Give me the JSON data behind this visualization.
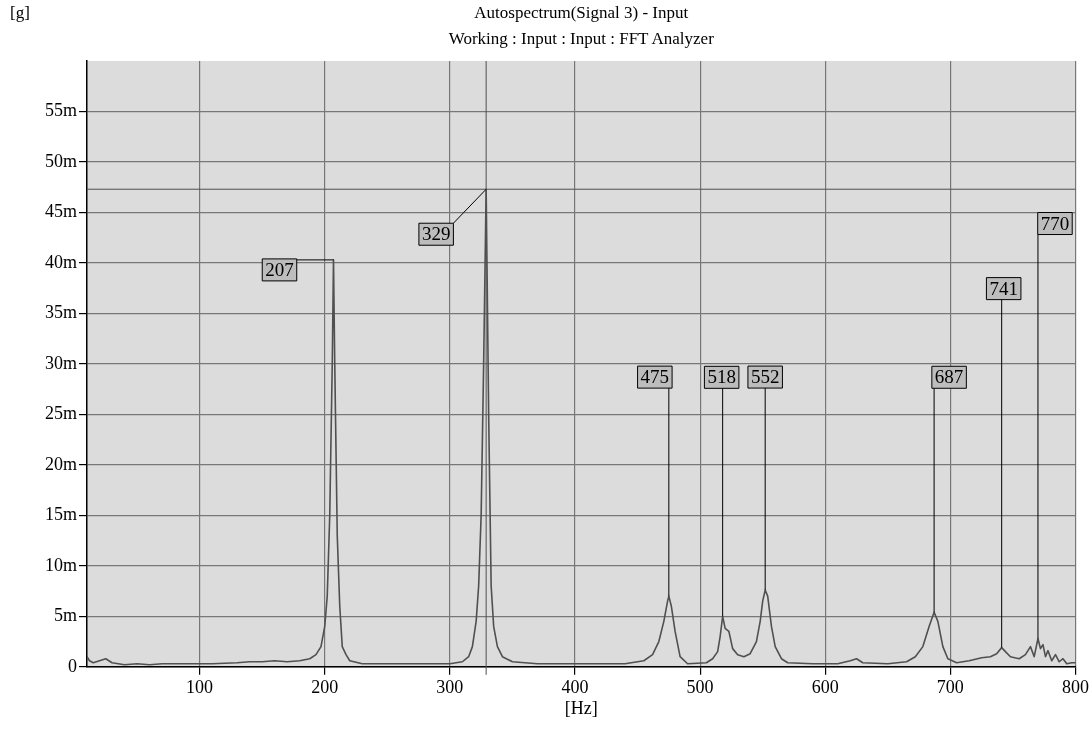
{
  "chart_data": {
    "type": "line",
    "title": "Autospectrum(Signal 3) - Input",
    "subtitle": "Working : Input : Input : FFT Analyzer",
    "xlabel": "[Hz]",
    "ylabel": "[g]",
    "xlim": [
      10,
      800
    ],
    "xticks": [
      100,
      200,
      300,
      400,
      500,
      600,
      700,
      800
    ],
    "ylim": [
      0,
      60
    ],
    "yticks": [
      0,
      {
        "value": 5,
        "label": "5m"
      },
      {
        "value": 10,
        "label": "10m"
      },
      {
        "value": 15,
        "label": "15m"
      },
      {
        "value": 20,
        "label": "20m"
      },
      {
        "value": 25,
        "label": "25m"
      },
      {
        "value": 30,
        "label": "30m"
      },
      {
        "value": 35,
        "label": "35m"
      },
      {
        "value": 40,
        "label": "40m"
      },
      {
        "value": 45,
        "label": "45m"
      },
      {
        "value": 50,
        "label": "50m"
      },
      {
        "value": 55,
        "label": "55m"
      }
    ],
    "grid": true,
    "legend": false,
    "marker": "none",
    "line_style": "solid",
    "series": [
      {
        "color": "#505050",
        "x": [
          10,
          12,
          15,
          25,
          30,
          40,
          50,
          60,
          70,
          90,
          110,
          130,
          140,
          150,
          160,
          170,
          180,
          188,
          193,
          197,
          200,
          202,
          204,
          206,
          207,
          208,
          210,
          212,
          214,
          217,
          220,
          230,
          260,
          280,
          300,
          310,
          315,
          318,
          321,
          323,
          325,
          327,
          329,
          331,
          333,
          335,
          338,
          342,
          350,
          370,
          400,
          440,
          455,
          462,
          467,
          471,
          474,
          475,
          477,
          480,
          484,
          490,
          505,
          510,
          514,
          516,
          518,
          520,
          523,
          526,
          530,
          535,
          540,
          545,
          548,
          550,
          552,
          554,
          557,
          560,
          565,
          570,
          590,
          600,
          610,
          620,
          625,
          630,
          650,
          665,
          672,
          678,
          683,
          687,
          690,
          694,
          698,
          705,
          715,
          725,
          732,
          737,
          741,
          744,
          748,
          755,
          760,
          764,
          767,
          770,
          772,
          774,
          776,
          778,
          781,
          784,
          787,
          790,
          793,
          797,
          800
        ],
        "values": [
          1,
          0.6,
          0.4,
          0.8,
          0.4,
          0.2,
          0.3,
          0.2,
          0.3,
          0.3,
          0.3,
          0.4,
          0.5,
          0.5,
          0.6,
          0.5,
          0.6,
          0.8,
          1.2,
          2,
          4,
          7,
          15,
          30,
          40.3,
          30,
          13,
          6,
          2,
          1.2,
          0.6,
          0.3,
          0.3,
          0.3,
          0.3,
          0.5,
          1,
          2,
          4.5,
          8,
          15,
          30,
          47.3,
          25,
          8,
          4,
          2,
          1,
          0.5,
          0.3,
          0.3,
          0.3,
          0.6,
          1.2,
          2.5,
          4.5,
          6.5,
          7,
          6,
          3.5,
          1,
          0.3,
          0.4,
          0.8,
          1.5,
          3,
          5,
          3.8,
          3.5,
          1.8,
          1.2,
          1,
          1.3,
          2.5,
          4.5,
          6.5,
          7.6,
          7,
          4,
          2,
          0.8,
          0.4,
          0.3,
          0.3,
          0.3,
          0.6,
          0.8,
          0.4,
          0.3,
          0.5,
          1,
          2,
          4,
          5.4,
          4.5,
          2,
          0.8,
          0.4,
          0.6,
          0.9,
          1,
          1.3,
          1.9,
          1.5,
          1,
          0.8,
          1.2,
          2,
          1,
          2.8,
          1.8,
          2.2,
          1,
          1.6,
          0.6,
          1.2,
          0.5,
          0.8,
          0.3,
          0.4,
          0.4
        ]
      }
    ],
    "ref_lines": [
      {
        "axis": "y",
        "value": 47.3,
        "color": "#505050"
      },
      {
        "axis": "x",
        "value": 329,
        "color": "#505050"
      }
    ],
    "annotations": [
      {
        "text": "207",
        "x": 207,
        "y": 40.3
      },
      {
        "text": "329",
        "x": 329,
        "y": 47.3
      },
      {
        "text": "475",
        "x": 475,
        "y": 7
      },
      {
        "text": "518",
        "x": 518,
        "y": 5
      },
      {
        "text": "552",
        "x": 552,
        "y": 7.6
      },
      {
        "text": "687",
        "x": 687,
        "y": 5.4
      },
      {
        "text": "741",
        "x": 741,
        "y": 1.9
      },
      {
        "text": "770",
        "x": 770,
        "y": 2.8
      }
    ]
  }
}
